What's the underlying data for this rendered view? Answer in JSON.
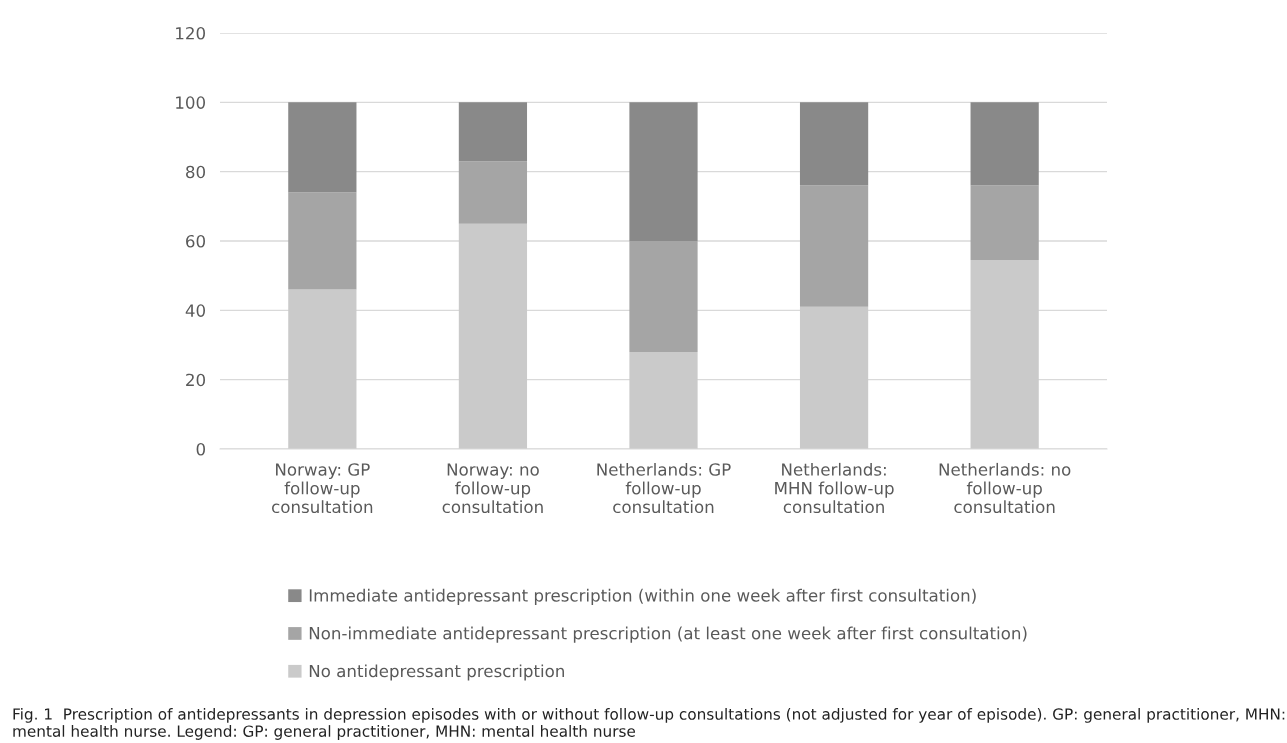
{
  "chart_data": {
    "type": "bar",
    "stacked": true,
    "categories": [
      "Norway: GP follow-up consultation",
      "Norway: no follow-up consultation",
      "Netherlands: GP follow-up consultation",
      "Netherlands: MHN follow-up consultation",
      "Netherlands: no follow-up consultation"
    ],
    "series": [
      {
        "name": "No antidepressant prescription",
        "color": "#cacaca",
        "values": [
          46,
          65,
          28,
          41,
          54.5
        ]
      },
      {
        "name": "Non-immediate antidepressant prescription (at least one week after first consultation)",
        "color": "#a5a5a5",
        "values": [
          28,
          18,
          32,
          35,
          21.5
        ]
      },
      {
        "name": "Immediate antidepressant prescription (within one week after first consultation)",
        "color": "#898989",
        "values": [
          26,
          17,
          40,
          24,
          24
        ]
      }
    ],
    "ylim": [
      0,
      120
    ],
    "yticks": [
      0,
      20,
      40,
      60,
      80,
      100,
      120
    ],
    "grid": "y",
    "legend": "bottom",
    "annotations": [
      "Fig. 1  Prescription of antidepressants in depression episodes with or without follow-up consultations (not adjusted for year of episode). GP: general practitioner, MHN: mental health nurse. Legend: GP: general practitioner, MHN: mental health nurse"
    ]
  }
}
